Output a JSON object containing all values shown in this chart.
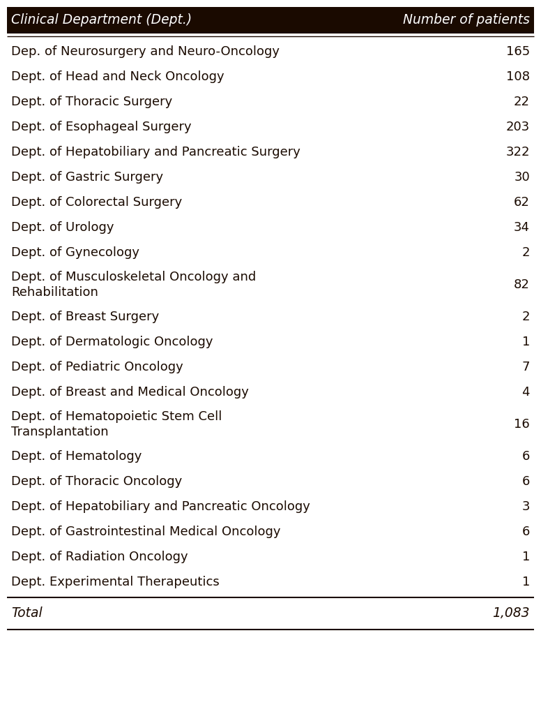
{
  "col1_header": "Clinical Department (Dept.)",
  "col2_header": "Number of patients",
  "rows": [
    [
      "Dep. of Neurosurgery and Neuro-Oncology",
      "165",
      1
    ],
    [
      "Dept. of Head and Neck Oncology",
      "108",
      1
    ],
    [
      "Dept. of Thoracic Surgery",
      "22",
      1
    ],
    [
      "Dept. of Esophageal Surgery",
      "203",
      1
    ],
    [
      "Dept. of Hepatobiliary and Pancreatic Surgery",
      "322",
      1
    ],
    [
      "Dept. of Gastric Surgery",
      "30",
      1
    ],
    [
      "Dept. of Colorectal Surgery",
      "62",
      1
    ],
    [
      "Dept. of Urology",
      "34",
      1
    ],
    [
      "Dept. of Gynecology",
      "2",
      1
    ],
    [
      "Dept. of Musculoskeletal Oncology and\nRehabilitation",
      "82",
      2
    ],
    [
      "Dept. of Breast Surgery",
      "2",
      1
    ],
    [
      "Dept. of Dermatologic Oncology",
      "1",
      1
    ],
    [
      "Dept. of Pediatric Oncology",
      "7",
      1
    ],
    [
      "Dept. of Breast and Medical Oncology",
      "4",
      1
    ],
    [
      "Dept. of Hematopoietic Stem Cell\nTransplantation",
      "16",
      2
    ],
    [
      "Dept. of Hematology",
      "6",
      1
    ],
    [
      "Dept. of Thoracic Oncology",
      "6",
      1
    ],
    [
      "Dept. of Hepatobiliary and Pancreatic Oncology",
      "3",
      1
    ],
    [
      "Dept. of Gastrointestinal Medical Oncology",
      "6",
      1
    ],
    [
      "Dept. of Radiation Oncology",
      "1",
      1
    ],
    [
      "Dept. Experimental Therapeutics",
      "1",
      1
    ]
  ],
  "total_label": "Total",
  "total_value": "1,083",
  "text_color": "#1a0a00",
  "header_bg_color": "#1a0a00",
  "header_text_color": "#ffffff",
  "line_color": "#1a0a00",
  "bg_color": "#ffffff",
  "font_size": 13.5
}
